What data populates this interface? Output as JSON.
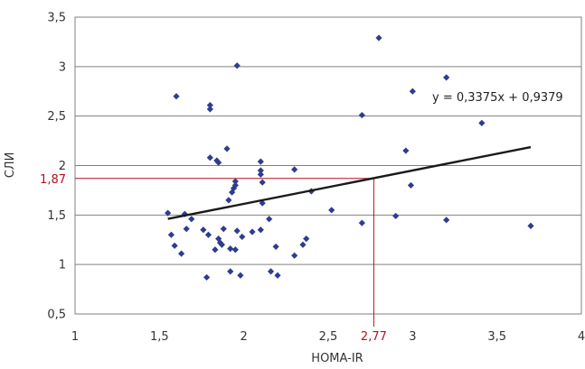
{
  "chart_data": {
    "type": "scatter",
    "title": "",
    "xlabel": "HOMA-IR",
    "ylabel": "СЛИ",
    "xlim": [
      1,
      4
    ],
    "ylim": [
      0.5,
      3.5
    ],
    "x_ticks": [
      "1",
      "1,5",
      "2",
      "2,5",
      "3",
      "3,5",
      "4"
    ],
    "y_ticks": [
      "0,5",
      "1",
      "1,5",
      "2",
      "2,5",
      "3",
      "3,5"
    ],
    "grid": "horizontal",
    "marker_color": "#2e3d8f",
    "trendline_color": "#1a1a1a",
    "reference_color": "#b3121f",
    "series": [
      {
        "points": [
          [
            1.55,
            1.52
          ],
          [
            1.57,
            1.3
          ],
          [
            1.59,
            1.19
          ],
          [
            1.6,
            2.7
          ],
          [
            1.63,
            1.11
          ],
          [
            1.65,
            1.51
          ],
          [
            1.66,
            1.36
          ],
          [
            1.69,
            1.46
          ],
          [
            1.76,
            1.35
          ],
          [
            1.78,
            0.87
          ],
          [
            1.79,
            1.3
          ],
          [
            1.8,
            2.61
          ],
          [
            1.8,
            2.57
          ],
          [
            1.8,
            2.08
          ],
          [
            1.83,
            1.15
          ],
          [
            1.84,
            2.05
          ],
          [
            1.85,
            2.03
          ],
          [
            1.85,
            1.26
          ],
          [
            1.86,
            1.22
          ],
          [
            1.87,
            1.2
          ],
          [
            1.88,
            1.36
          ],
          [
            1.9,
            2.17
          ],
          [
            1.91,
            1.65
          ],
          [
            1.92,
            0.93
          ],
          [
            1.92,
            1.16
          ],
          [
            1.93,
            1.73
          ],
          [
            1.94,
            1.77
          ],
          [
            1.95,
            1.15
          ],
          [
            1.95,
            1.84
          ],
          [
            1.95,
            1.8
          ],
          [
            1.96,
            3.01
          ],
          [
            1.96,
            1.34
          ],
          [
            1.98,
            0.89
          ],
          [
            1.99,
            1.28
          ],
          [
            2.05,
            1.33
          ],
          [
            2.1,
            2.04
          ],
          [
            2.1,
            1.95
          ],
          [
            2.1,
            1.91
          ],
          [
            2.1,
            1.35
          ],
          [
            2.11,
            1.62
          ],
          [
            2.11,
            1.83
          ],
          [
            2.15,
            1.46
          ],
          [
            2.16,
            0.93
          ],
          [
            2.19,
            1.18
          ],
          [
            2.2,
            0.89
          ],
          [
            2.3,
            1.96
          ],
          [
            2.3,
            1.09
          ],
          [
            2.35,
            1.2
          ],
          [
            2.37,
            1.26
          ],
          [
            2.4,
            1.74
          ],
          [
            2.52,
            1.55
          ],
          [
            2.7,
            2.51
          ],
          [
            2.7,
            1.42
          ],
          [
            2.8,
            3.29
          ],
          [
            2.9,
            1.49
          ],
          [
            2.96,
            2.15
          ],
          [
            2.99,
            1.8
          ],
          [
            3.0,
            2.75
          ],
          [
            3.2,
            2.89
          ],
          [
            3.2,
            1.45
          ],
          [
            3.41,
            2.43
          ],
          [
            3.7,
            1.39
          ]
        ]
      }
    ],
    "trendline": {
      "slope": 0.3375,
      "intercept": 0.9379,
      "x_range": [
        1.55,
        3.7
      ],
      "equation_label": "y = 0,3375x + 0,9379"
    },
    "reference": {
      "x": 2.77,
      "y": 1.87,
      "x_label": "2,77",
      "y_label": "1,87"
    }
  }
}
